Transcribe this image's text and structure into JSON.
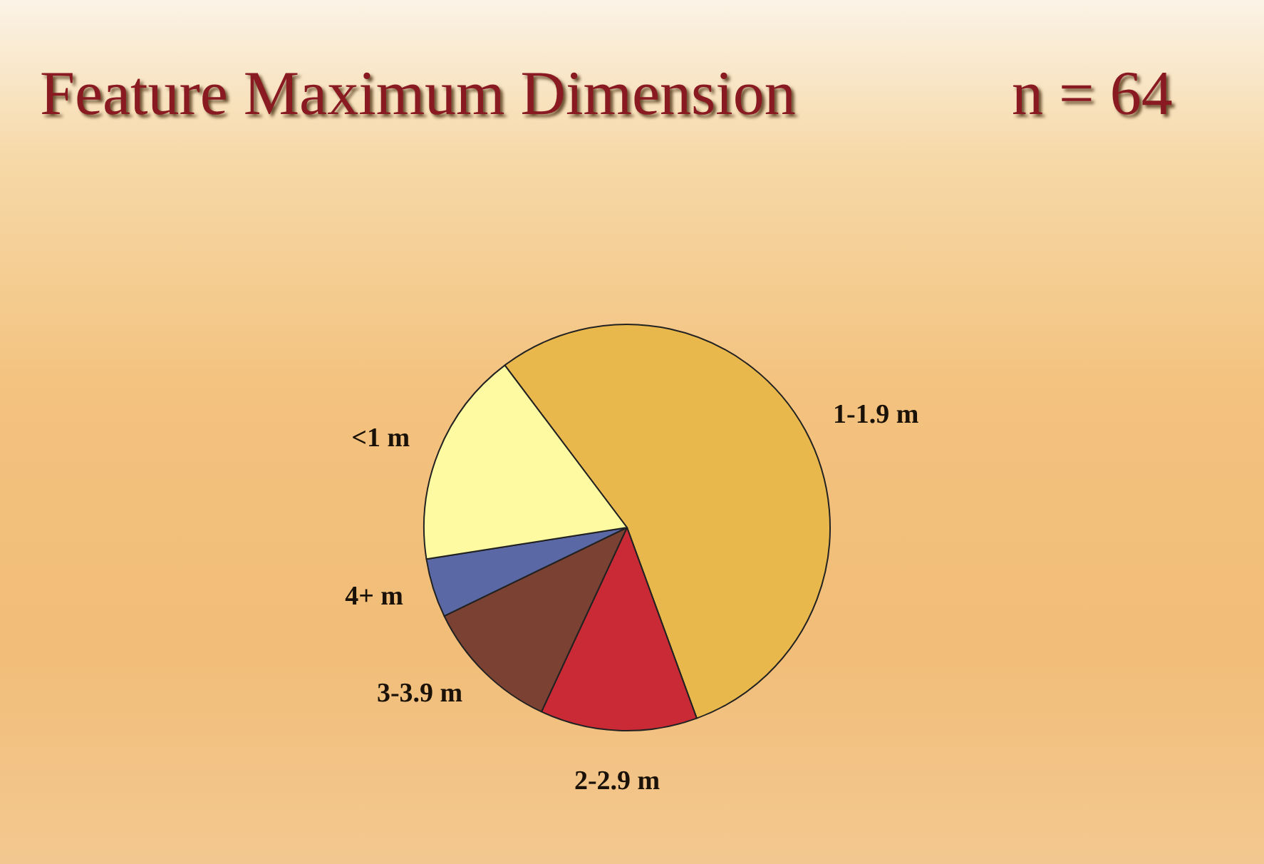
{
  "chart_data": {
    "type": "pie",
    "title": "Feature Maximum Dimension",
    "subtitle": "n = 64",
    "categories": [
      "1-1.9 m",
      "2-2.9 m",
      "3-3.9 m",
      "4+ m",
      "<1 m"
    ],
    "values": [
      54.7,
      12.5,
      10.9,
      4.7,
      17.2
    ],
    "colors": [
      "#e9b84c",
      "#c92a36",
      "#7b4132",
      "#5a68a6",
      "#fdfaa2"
    ],
    "legend": false
  }
}
